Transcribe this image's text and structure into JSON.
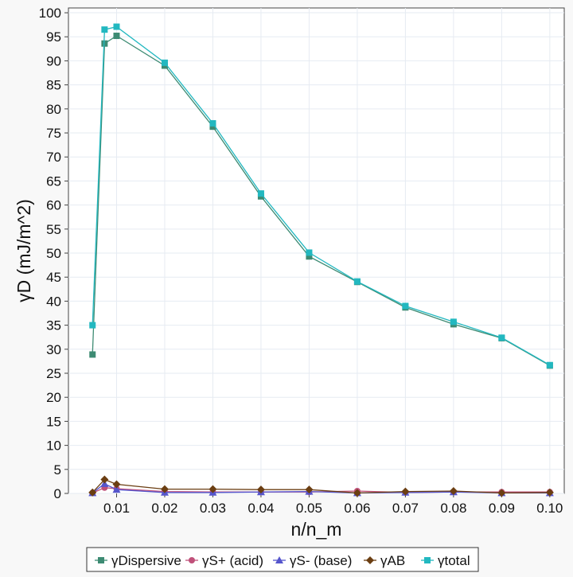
{
  "chart_data": {
    "type": "line",
    "title": "",
    "xlabel": "n/n_m",
    "ylabel": "γD (mJ/m^2)",
    "xlim": [
      0.0,
      0.103
    ],
    "ylim": [
      0,
      101
    ],
    "x_ticks": [
      0.01,
      0.02,
      0.03,
      0.04,
      0.05,
      0.06,
      0.07,
      0.08,
      0.09,
      0.1
    ],
    "x_tick_labels": [
      "0.01",
      "0.02",
      "0.03",
      "0.04",
      "0.05",
      "0.06",
      "0.07",
      "0.08",
      "0.09",
      "0.10"
    ],
    "y_ticks": [
      0,
      5,
      10,
      15,
      20,
      25,
      30,
      35,
      40,
      45,
      50,
      55,
      60,
      65,
      70,
      75,
      80,
      85,
      90,
      95,
      100
    ],
    "y_tick_labels": [
      "0",
      "5",
      "10",
      "15",
      "20",
      "25",
      "30",
      "35",
      "40",
      "45",
      "50",
      "55",
      "60",
      "65",
      "70",
      "75",
      "80",
      "85",
      "90",
      "95",
      "100"
    ],
    "grid": true,
    "legend_position": "bottom",
    "series": [
      {
        "name": "γDispersive",
        "color": "#3d8b73",
        "marker": "square",
        "x": [
          0.005,
          0.0075,
          0.01,
          0.02,
          0.03,
          0.04,
          0.05,
          0.06,
          0.07,
          0.08,
          0.09,
          0.1
        ],
        "y": [
          28.9,
          93.6,
          95.2,
          89.0,
          76.3,
          61.8,
          49.3,
          44.0,
          38.7,
          35.2,
          32.3,
          26.6
        ]
      },
      {
        "name": "γS+ (acid)",
        "color": "#c0507a",
        "marker": "circle",
        "x": [
          0.005,
          0.0075,
          0.01,
          0.02,
          0.03,
          0.04,
          0.05,
          0.06,
          0.07,
          0.08,
          0.09,
          0.1
        ],
        "y": [
          0.1,
          1.2,
          1.0,
          0.4,
          0.3,
          0.3,
          0.3,
          0.5,
          0.2,
          0.3,
          0.3,
          0.3
        ]
      },
      {
        "name": "γS- (base)",
        "color": "#5555cc",
        "marker": "triangle",
        "x": [
          0.005,
          0.0075,
          0.01,
          0.02,
          0.03,
          0.04,
          0.05,
          0.06,
          0.07,
          0.08,
          0.09,
          0.1
        ],
        "y": [
          0.1,
          2.0,
          0.8,
          0.2,
          0.2,
          0.3,
          0.4,
          0.1,
          0.2,
          0.3,
          0.1,
          0.1
        ]
      },
      {
        "name": "γAB",
        "color": "#6b3e12",
        "marker": "diamond",
        "x": [
          0.005,
          0.0075,
          0.01,
          0.02,
          0.03,
          0.04,
          0.05,
          0.06,
          0.07,
          0.08,
          0.09,
          0.1
        ],
        "y": [
          0.2,
          2.9,
          1.9,
          0.9,
          0.9,
          0.8,
          0.8,
          0.1,
          0.4,
          0.5,
          0.1,
          0.2
        ]
      },
      {
        "name": "γtotal",
        "color": "#22b8c0",
        "marker": "square",
        "x": [
          0.005,
          0.0075,
          0.01,
          0.02,
          0.03,
          0.04,
          0.05,
          0.06,
          0.07,
          0.08,
          0.09,
          0.1
        ],
        "y": [
          35.0,
          96.5,
          97.1,
          89.6,
          77.0,
          62.4,
          50.1,
          44.1,
          39.0,
          35.7,
          32.4,
          26.7
        ]
      }
    ]
  }
}
